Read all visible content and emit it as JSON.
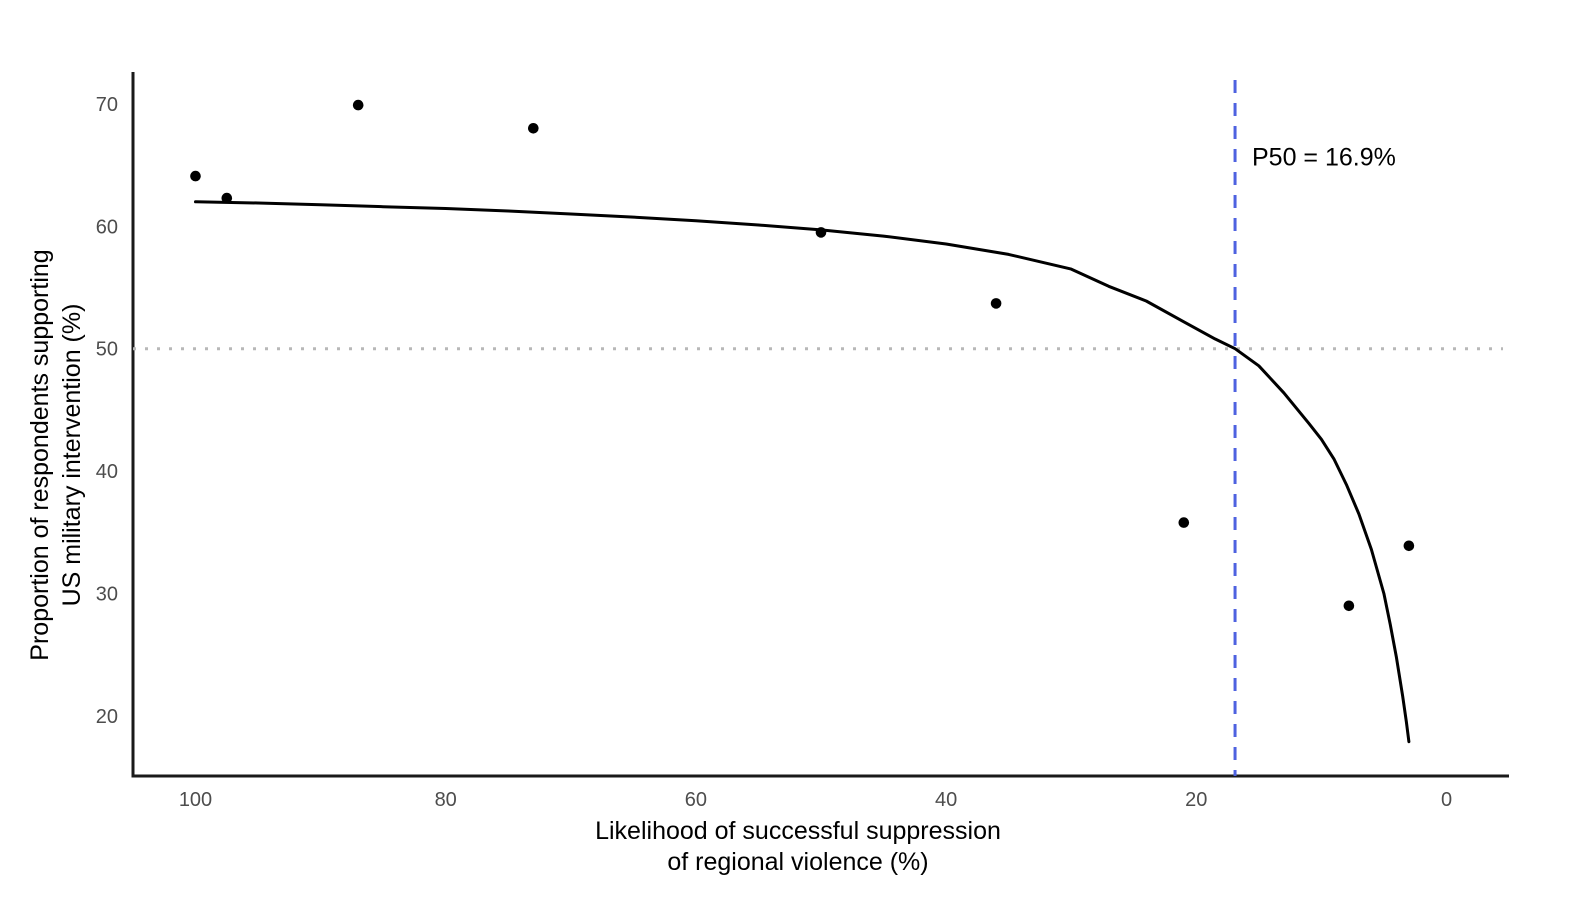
{
  "figure": {
    "y_axis_title_line1": "Proportion of respondents supporting",
    "y_axis_title_line2": "US military intervention (%)",
    "x_axis_title_line1": "Likelihood of successful suppression",
    "x_axis_title_line2": "of regional violence (%)",
    "annotation_label": "P50 = 16.9%"
  },
  "chart_data": {
    "type": "scatter",
    "title": "",
    "xlabel": "Likelihood of successful suppression of regional violence (%)",
    "ylabel": "Proportion of respondents supporting US military intervention (%)",
    "x_axis_reversed": true,
    "xlim": [
      105,
      -5
    ],
    "ylim": [
      15.1,
      72.6
    ],
    "x_ticks": [
      100,
      80,
      60,
      40,
      20,
      0
    ],
    "y_ticks": [
      20,
      30,
      40,
      50,
      60,
      70
    ],
    "grid": "off",
    "legend": "none",
    "points": [
      {
        "x": 100,
        "y": 64.1
      },
      {
        "x": 97.5,
        "y": 62.3
      },
      {
        "x": 87,
        "y": 69.9
      },
      {
        "x": 73,
        "y": 68.0
      },
      {
        "x": 50,
        "y": 59.5
      },
      {
        "x": 36,
        "y": 53.7
      },
      {
        "x": 21,
        "y": 35.8
      },
      {
        "x": 7.8,
        "y": 29.0
      },
      {
        "x": 3,
        "y": 33.9
      }
    ],
    "fit_curve": [
      {
        "x": 100,
        "y": 62.0
      },
      {
        "x": 95,
        "y": 61.9
      },
      {
        "x": 90,
        "y": 61.75
      },
      {
        "x": 85,
        "y": 61.6
      },
      {
        "x": 80,
        "y": 61.45
      },
      {
        "x": 75,
        "y": 61.25
      },
      {
        "x": 70,
        "y": 61.0
      },
      {
        "x": 65,
        "y": 60.75
      },
      {
        "x": 60,
        "y": 60.45
      },
      {
        "x": 55,
        "y": 60.1
      },
      {
        "x": 50,
        "y": 59.7
      },
      {
        "x": 45,
        "y": 59.2
      },
      {
        "x": 40,
        "y": 58.55
      },
      {
        "x": 35,
        "y": 57.7
      },
      {
        "x": 30,
        "y": 56.5
      },
      {
        "x": 27,
        "y": 55.1
      },
      {
        "x": 24,
        "y": 53.9
      },
      {
        "x": 21,
        "y": 52.2
      },
      {
        "x": 18.5,
        "y": 50.8
      },
      {
        "x": 16.9,
        "y": 50.0
      },
      {
        "x": 15,
        "y": 48.6
      },
      {
        "x": 13,
        "y": 46.4
      },
      {
        "x": 11,
        "y": 43.9
      },
      {
        "x": 10,
        "y": 42.6
      },
      {
        "x": 9,
        "y": 41.0
      },
      {
        "x": 8,
        "y": 38.9
      },
      {
        "x": 7,
        "y": 36.5
      },
      {
        "x": 6,
        "y": 33.6
      },
      {
        "x": 5,
        "y": 30.0
      },
      {
        "x": 4.5,
        "y": 27.5
      },
      {
        "x": 4,
        "y": 24.8
      },
      {
        "x": 3.5,
        "y": 21.6
      },
      {
        "x": 3.2,
        "y": 19.5
      },
      {
        "x": 3,
        "y": 17.9
      }
    ],
    "reference_lines": {
      "horizontal": {
        "y": 50,
        "style": "dotted",
        "color": "#b8b8b8"
      },
      "vertical": {
        "x": 16.9,
        "style": "dashed",
        "color": "#4e62e0",
        "label": "P50 = 16.9%"
      }
    },
    "colors": {
      "points": "#000000",
      "curve": "#000000",
      "axis": "#1a1a1a",
      "tick_labels": "#4d4d4d",
      "axis_titles": "#000000",
      "annotation": "#000000"
    }
  }
}
